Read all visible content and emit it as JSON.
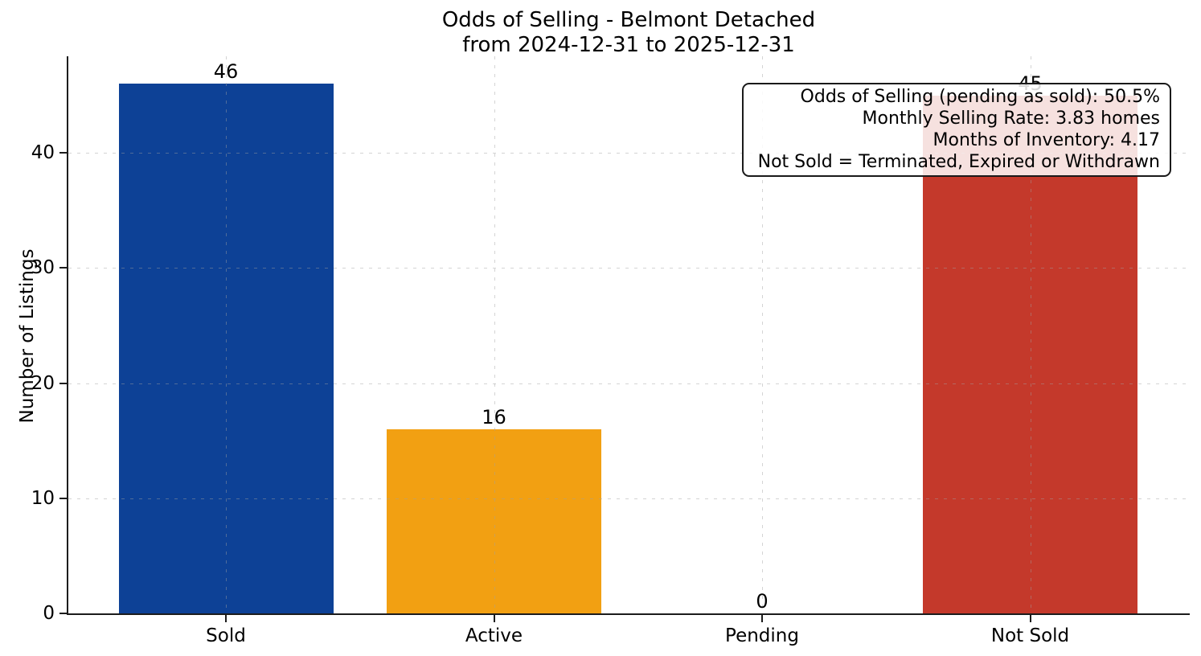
{
  "chart_data": {
    "type": "bar",
    "title": "Odds of Selling - Belmont Detached",
    "subtitle": "from 2024-12-31 to 2025-12-31",
    "xlabel": "",
    "ylabel": "Number of Listings",
    "categories": [
      "Sold",
      "Active",
      "Pending",
      "Not Sold"
    ],
    "values": [
      46,
      16,
      0,
      45
    ],
    "value_labels": [
      "46",
      "16",
      "0",
      "45"
    ],
    "bar_colors": [
      "#0d4196",
      "#f2a012",
      null,
      "#c4392b"
    ],
    "ylim": [
      0,
      48.4
    ],
    "yticks": [
      0,
      10,
      20,
      30,
      40
    ],
    "grid": {
      "style": "dashed",
      "axes": "both",
      "color": "#d9d9d9",
      "over_bars": true
    },
    "legend": null,
    "annotation_lines": [
      "Odds of Selling (pending as sold): 50.5%",
      "Monthly Selling Rate: 3.83 homes",
      "Months of Inventory: 4.17",
      "Not Sold = Terminated, Expired or Withdrawn"
    ],
    "stats": {
      "odds_of_selling_pending_as_sold": "50.5%",
      "monthly_selling_rate_homes": 3.83,
      "months_of_inventory": 4.17
    }
  }
}
